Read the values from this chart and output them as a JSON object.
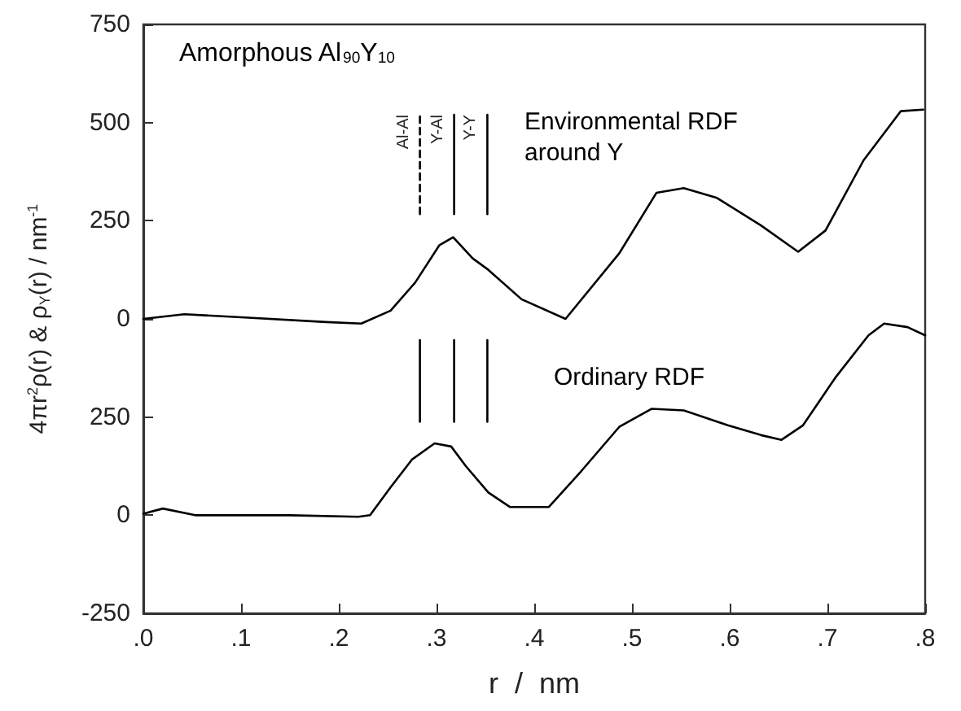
{
  "chart_data": {
    "type": "line",
    "title": "Amorphous Al$_{90}$Y$_{10}$",
    "xlabel": "r  /  nm",
    "ylabel": "4πr$^{2}$ρ(r) & ρ$_{Y}$(r) / nm$^{-1}$",
    "xlim": [
      0,
      0.8
    ],
    "ylim": [
      -250,
      1250
    ],
    "y2lim": [
      -750,
      750
    ],
    "xticks": [
      {
        "value": 0,
        "label": ".0"
      },
      {
        "value": 0.1,
        "label": ".1"
      },
      {
        "value": 0.2,
        "label": ".2"
      },
      {
        "value": 0.3,
        "label": ".3"
      },
      {
        "value": 0.4,
        "label": ".4"
      },
      {
        "value": 0.5,
        "label": ".5"
      },
      {
        "value": 0.6,
        "label": ".6"
      },
      {
        "value": 0.7,
        "label": ".7"
      },
      {
        "value": 0.8,
        "label": ".8"
      }
    ],
    "yticks": [
      -250,
      0,
      250
    ],
    "y2ticks": [
      0,
      250,
      500,
      750
    ],
    "legend": false,
    "marker": "none",
    "series": [
      {
        "name": "Environmental RDF around Y",
        "color": "#000000",
        "axis": "y2",
        "x": [
          0,
          0.042,
          0.1,
          0.187,
          0.223,
          0.253,
          0.278,
          0.303,
          0.317,
          0.337,
          0.353,
          0.387,
          0.432,
          0.487,
          0.525,
          0.553,
          0.587,
          0.632,
          0.67,
          0.698,
          0.737,
          0.775,
          0.798
        ],
        "values": [
          0,
          12,
          4,
          -8,
          -12,
          21,
          92,
          188,
          208,
          154,
          125,
          50,
          0,
          167,
          321,
          333,
          308,
          238,
          171,
          225,
          404,
          529,
          533
        ]
      },
      {
        "name": "Ordinary RDF",
        "color": "#000000",
        "x": [
          0,
          0.02,
          0.053,
          0.15,
          0.22,
          0.232,
          0.253,
          0.275,
          0.298,
          0.315,
          0.33,
          0.353,
          0.375,
          0.415,
          0.448,
          0.487,
          0.52,
          0.553,
          0.598,
          0.632,
          0.653,
          0.675,
          0.708,
          0.742,
          0.758,
          0.782,
          0.8
        ],
        "values": [
          4,
          17,
          0,
          0,
          -4,
          0,
          71,
          142,
          183,
          175,
          125,
          58,
          21,
          21,
          112,
          225,
          271,
          267,
          229,
          204,
          192,
          229,
          350,
          458,
          488,
          479,
          458
        ]
      },
      {
        "name": "Al-Al",
        "color": "#000000",
        "axis": "y2",
        "line_style": "dashed",
        "x": [
          0.283,
          0.283
        ],
        "values": [
          267,
          520
        ]
      },
      {
        "name": "Y-Al",
        "color": "#000000",
        "axis": "y2",
        "line_style": "solid",
        "x": [
          0.318,
          0.318
        ],
        "values": [
          267,
          520
        ]
      },
      {
        "name": "Y-Y",
        "color": "#000000",
        "axis": "y2",
        "line_style": "solid",
        "x": [
          0.352,
          0.352
        ],
        "values": [
          267,
          520
        ]
      },
      {
        "color": "#000000",
        "line_style": "solid",
        "x": [
          0.283,
          0.283
        ],
        "values": [
          238,
          446
        ]
      },
      {
        "color": "#000000",
        "line_style": "solid",
        "x": [
          0.318,
          0.318
        ],
        "values": [
          238,
          446
        ]
      },
      {
        "color": "#000000",
        "line_style": "solid",
        "x": [
          0.352,
          0.352
        ],
        "values": [
          238,
          446
        ]
      }
    ]
  }
}
